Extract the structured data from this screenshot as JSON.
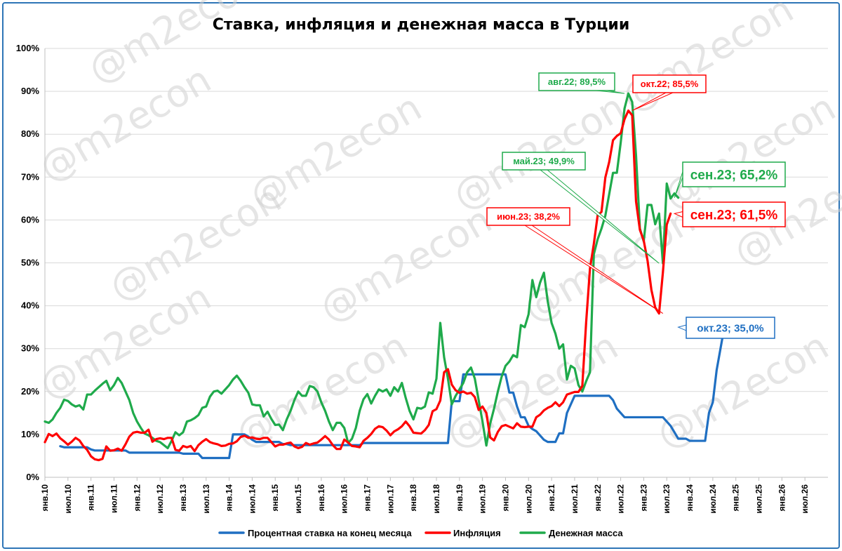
{
  "chart_data": {
    "type": "line",
    "title": "Ставка, инфляция и денежная масса в Турции",
    "watermark": "@m2econ",
    "y_axis": {
      "min": 0,
      "max": 100,
      "step": 10,
      "format": "percent"
    },
    "y_ticks": [
      "0%",
      "10%",
      "20%",
      "30%",
      "40%",
      "50%",
      "60%",
      "70%",
      "80%",
      "90%",
      "100%"
    ],
    "x_ticks": [
      "янв.10",
      "июл.10",
      "янв.11",
      "июл.11",
      "янв.12",
      "июл.12",
      "янв.13",
      "июл.13",
      "янв.14",
      "июл.14",
      "янв.15",
      "июл.15",
      "янв.16",
      "июл.16",
      "янв.17",
      "июл.17",
      "янв.18",
      "июл.18",
      "янв.19",
      "июл.19",
      "янв.20",
      "июл.20",
      "янв.21",
      "июл.21",
      "янв.22",
      "июл.22",
      "янв.23",
      "июл.23",
      "янв.24",
      "июл.24",
      "янв.25",
      "июл.25",
      "янв.26",
      "июл.26"
    ],
    "x_start": "янв.10",
    "grid": true,
    "legend_position": "bottom",
    "series": [
      {
        "name": "Процентная ставка на конец месяца",
        "color": "#1f6fc2",
        "values": [
          null,
          null,
          null,
          null,
          7.25,
          7,
          7,
          7,
          7,
          7,
          7,
          7,
          6.5,
          6.25,
          6.25,
          6.25,
          6.25,
          6.25,
          6.25,
          6.25,
          6.25,
          6.25,
          5.75,
          5.75,
          5.75,
          5.75,
          5.75,
          5.75,
          5.75,
          5.75,
          5.75,
          5.75,
          5.75,
          5.75,
          5.75,
          5.75,
          5.5,
          5.5,
          5.5,
          5.5,
          5.5,
          4.5,
          4.5,
          4.5,
          4.5,
          4.5,
          4.5,
          4.5,
          4.5,
          10,
          10,
          10,
          10,
          9.5,
          8.75,
          8.25,
          8.25,
          8.25,
          8.25,
          8.25,
          8.25,
          8.25,
          7.75,
          7.75,
          7.5,
          7.5,
          7.5,
          7.5,
          7.5,
          7.5,
          7.5,
          7.5,
          7.5,
          7.5,
          7.5,
          7.5,
          7.5,
          7.5,
          7.5,
          7.5,
          7.5,
          7.5,
          7.5,
          8,
          8,
          8,
          8,
          8,
          8,
          8,
          8,
          8,
          8,
          8,
          8,
          8,
          8,
          8,
          8,
          8,
          8,
          8,
          8,
          8,
          8,
          8,
          17.75,
          17.75,
          17.75,
          24,
          24,
          24,
          24,
          24,
          24,
          24,
          24,
          24,
          24,
          24,
          24,
          19.75,
          19.75,
          16.5,
          14,
          14,
          12,
          11.25,
          10.75,
          9.75,
          8.75,
          8.25,
          8.25,
          8.25,
          10.25,
          10.25,
          15,
          17,
          19,
          19,
          19,
          19,
          19,
          19,
          19,
          19,
          19,
          19,
          18,
          16,
          15,
          14,
          14,
          14,
          14,
          14,
          14,
          14,
          14,
          14,
          14,
          14,
          13,
          12,
          10.5,
          9,
          9,
          9,
          8.5,
          8.5,
          8.5,
          8.5,
          8.5,
          15,
          17.5,
          25,
          30,
          35
        ]
      },
      {
        "name": "Инфляция",
        "color": "#ff0000",
        "values": [
          8.2,
          10.1,
          9.6,
          10.2,
          9.1,
          8.4,
          7.6,
          8.3,
          9.2,
          8.6,
          7.3,
          6.4,
          4.9,
          4.2,
          4,
          4.3,
          7.2,
          6.2,
          6.3,
          6.7,
          6.2,
          7.7,
          9.5,
          10.4,
          10.6,
          10.4,
          10.4,
          11.1,
          8.3,
          8.9,
          9.1,
          8.9,
          9.2,
          9.2,
          6.4,
          6.2,
          7.3,
          7.0,
          7.3,
          6.1,
          7.5,
          8.3,
          8.9,
          8.2,
          7.9,
          7.7,
          7.3,
          7.4,
          7.8,
          7.9,
          8.4,
          9.4,
          9.7,
          9.2,
          9.3,
          9,
          8.9,
          9.2,
          9.2,
          8.2,
          7.2,
          7.6,
          7.6,
          7.9,
          8.1,
          7.2,
          6.8,
          7.1,
          8.0,
          7.6,
          7.9,
          8.1,
          8.8,
          9.6,
          8.8,
          7.5,
          6.6,
          6.6,
          8.8,
          8.1,
          7.3,
          7.2,
          7.0,
          8.5,
          9.2,
          10.1,
          11.3,
          11.9,
          11.7,
          10.9,
          9.8,
          10.7,
          11.2,
          11.9,
          13,
          11.9,
          10.4,
          10.3,
          10.2,
          11,
          12.2,
          15.4,
          15.9,
          17.9,
          24.5,
          25.2,
          21.6,
          20.3,
          19.7,
          20,
          19.5,
          19.7,
          18.7,
          15.7,
          16.5,
          15.0,
          9.3,
          8.6,
          10.6,
          11.9,
          12.2,
          11.8,
          11.4,
          12.6,
          11.8,
          11.7,
          11.8,
          11.8,
          14,
          14.6,
          15.6,
          16.2,
          16.6,
          17.5,
          16.6,
          17.5,
          19.3,
          19.6,
          19.9,
          19.9,
          21.3,
          36.1,
          48.7,
          54.4,
          61.1,
          61.9,
          69.9,
          73.5,
          78.6,
          79.6,
          80.2,
          83.5,
          85.5,
          84.4,
          64.3,
          57.7,
          55.2,
          50.5,
          43.7,
          39.6,
          38.2,
          47.8,
          58.9,
          61.5
        ]
      },
      {
        "name": "Денежная масса",
        "color": "#1faa4b",
        "values": [
          13,
          12.7,
          13.5,
          15,
          16.2,
          18.1,
          17.8,
          17,
          16.5,
          16.8,
          15.8,
          19.3,
          19.3,
          20.2,
          21,
          21.8,
          22.5,
          20.3,
          21.5,
          23.2,
          22,
          20,
          18,
          15,
          13,
          11.5,
          10.2,
          9.8,
          9.2,
          8.5,
          8.2,
          7.5,
          6.8,
          8.5,
          10.5,
          9.8,
          10.5,
          13,
          13.3,
          13.8,
          14.5,
          16.2,
          16.5,
          18.8,
          20,
          20.2,
          19.5,
          20.5,
          21.5,
          22.8,
          23.7,
          22.5,
          21,
          19.7,
          17,
          16.8,
          16.8,
          14.2,
          15.3,
          13.6,
          12.2,
          12.3,
          11,
          13.5,
          15.5,
          18,
          20,
          19,
          19,
          21.3,
          21,
          20,
          17.5,
          15.5,
          13,
          11,
          12.7,
          12.7,
          11.5,
          8,
          9,
          11.5,
          15.5,
          18.2,
          19.4,
          17.2,
          19,
          20.5,
          20,
          20.5,
          19,
          21,
          20,
          22,
          18.5,
          15.5,
          13.5,
          16.2,
          16,
          16.5,
          19.8,
          19.5,
          23,
          36,
          28,
          23,
          17,
          19,
          20.5,
          22,
          24.5,
          25.6,
          23,
          18,
          13,
          7.4,
          12.5,
          16,
          20,
          23.5,
          26,
          27,
          28.5,
          28,
          35.5,
          35,
          38,
          46,
          42,
          45.4,
          47.7,
          41,
          36,
          33.5,
          30,
          31,
          22.8,
          26,
          25.4,
          21.5,
          20,
          22.4,
          24.5,
          52,
          55.5,
          58,
          61,
          66,
          71,
          71,
          78,
          86,
          89.5,
          87.5,
          75,
          58,
          55,
          63.5,
          63.5,
          59,
          61.5,
          49.9,
          68.5,
          65,
          66.2,
          65.2
        ]
      }
    ],
    "annotations": [
      {
        "label": "авг.22; 89,5%",
        "series": "Денежная масса",
        "x": "авг.22",
        "y": 89.5,
        "color": "#1faa4b"
      },
      {
        "label": "окт.22; 85,5%",
        "series": "Инфляция",
        "x": "окт.22",
        "y": 85.5,
        "color": "#ff0000"
      },
      {
        "label": "май.23; 49,9%",
        "series": "Денежная масса",
        "x": "май.23",
        "y": 49.9,
        "color": "#1faa4b"
      },
      {
        "label": "июн.23; 38,2%",
        "series": "Инфляция",
        "x": "июн.23",
        "y": 38.2,
        "color": "#ff0000"
      },
      {
        "label": "сен.23; 65,2%",
        "series": "Денежная масса",
        "x": "сен.23",
        "y": 65.2,
        "color": "#1faa4b",
        "big": true
      },
      {
        "label": "сен.23; 61,5%",
        "series": "Инфляция",
        "x": "сен.23",
        "y": 61.5,
        "color": "#ff0000",
        "big": true
      },
      {
        "label": "окт.23; 35,0%",
        "series": "Процентная ставка на конец месяца",
        "x": "окт.23",
        "y": 35.0,
        "color": "#1f6fc2"
      }
    ]
  }
}
